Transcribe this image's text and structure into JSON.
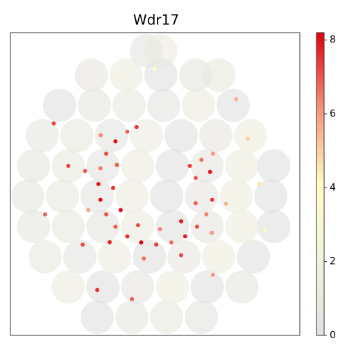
{
  "chart_data": {
    "type": "scatter",
    "title": "Wdr17",
    "xlim": [
      0,
      1000
    ],
    "ylim": [
      0,
      1000
    ],
    "x": [
      300,
      420,
      540,
      660,
      200,
      320,
      440,
      560,
      680,
      800,
      120,
      240,
      360,
      480,
      600,
      720,
      840,
      80,
      200,
      320,
      440,
      560,
      680,
      800,
      910,
      60,
      180,
      300,
      420,
      540,
      660,
      780,
      900,
      80,
      200,
      320,
      440,
      560,
      680,
      800,
      910,
      110,
      230,
      350,
      470,
      590,
      710,
      830,
      170,
      290,
      410,
      530,
      650,
      770,
      280,
      400,
      520,
      640,
      720,
      470,
      520,
      436,
      404,
      363,
      331,
      311,
      304,
      311,
      331,
      363,
      404,
      452,
      504,
      556,
      604,
      645,
      677,
      697,
      312,
      258,
      269,
      343,
      461,
      590,
      696,
      745,
      368,
      355,
      381,
      441,
      517,
      590,
      640,
      620,
      660,
      690,
      640,
      700,
      150,
      820,
      120,
      880,
      300,
      700,
      500,
      250,
      780,
      420,
      860,
      200
    ],
    "y": [
      60,
      60,
      60,
      60,
      160,
      160,
      160,
      160,
      160,
      160,
      260,
      260,
      260,
      260,
      260,
      260,
      260,
      360,
      360,
      360,
      360,
      360,
      360,
      360,
      360,
      460,
      460,
      460,
      460,
      460,
      460,
      460,
      460,
      560,
      560,
      560,
      560,
      560,
      560,
      560,
      560,
      660,
      660,
      660,
      660,
      660,
      660,
      660,
      760,
      760,
      760,
      760,
      760,
      760,
      860,
      860,
      860,
      860,
      860,
      940,
      940,
      688,
      673,
      641,
      600,
      552,
      500,
      448,
      400,
      359,
      327,
      307,
      300,
      307,
      327,
      359,
      400,
      448,
      661,
      543,
      414,
      308,
      254,
      265,
      339,
      435,
      563,
      487,
      414,
      364,
      351,
      377,
      437,
      560,
      580,
      540,
      520,
      600,
      700,
      650,
      400,
      350,
      150,
      200,
      880,
      300,
      780,
      120,
      500,
      560
    ],
    "values": [
      0,
      0.4,
      0.8,
      0.2,
      1.2,
      0,
      0.6,
      1.5,
      0,
      0.4,
      0.8,
      0.2,
      1.2,
      0,
      0.6,
      1.5,
      0,
      0.4,
      0.8,
      0.2,
      1.2,
      0,
      0.6,
      1.5,
      0,
      0.4,
      0.8,
      0.2,
      1.2,
      0,
      0.6,
      1.5,
      0,
      0.4,
      0.8,
      0.2,
      1.2,
      0,
      0.6,
      1.5,
      0,
      0.4,
      0.8,
      0.2,
      1.2,
      0,
      0.6,
      1.5,
      0,
      0.4,
      0.8,
      0.2,
      1.2,
      0,
      0.6,
      1.5,
      0,
      0.4,
      0.8,
      0.2,
      1.2,
      7.5,
      6.8,
      8.0,
      7.2,
      6.5,
      7.9,
      8.1,
      7.0,
      6.9,
      7.6,
      8.2,
      7.3,
      6.7,
      7.8,
      7.1,
      6.4,
      7.4,
      6.2,
      7.0,
      5.8,
      7.7,
      6.6,
      7.2,
      6.0,
      5.5,
      6.9,
      7.5,
      8.0,
      7.1,
      6.3,
      7.8,
      6.8,
      7.4,
      6.6,
      7.9,
      7.0,
      6.1,
      7.2,
      5.0,
      6.8,
      4.2,
      7.5,
      6.0,
      3.8,
      7.1,
      5.6,
      6.9,
      4.6,
      7.3
    ],
    "colorbar": {
      "clim": [
        0,
        8.2
      ],
      "ticks": [
        0,
        2,
        4,
        6,
        8
      ],
      "colormap": [
        "#e0e0e0",
        "#f4f2dc",
        "#fffdc4",
        "#f5927c",
        "#e3000c"
      ]
    }
  }
}
